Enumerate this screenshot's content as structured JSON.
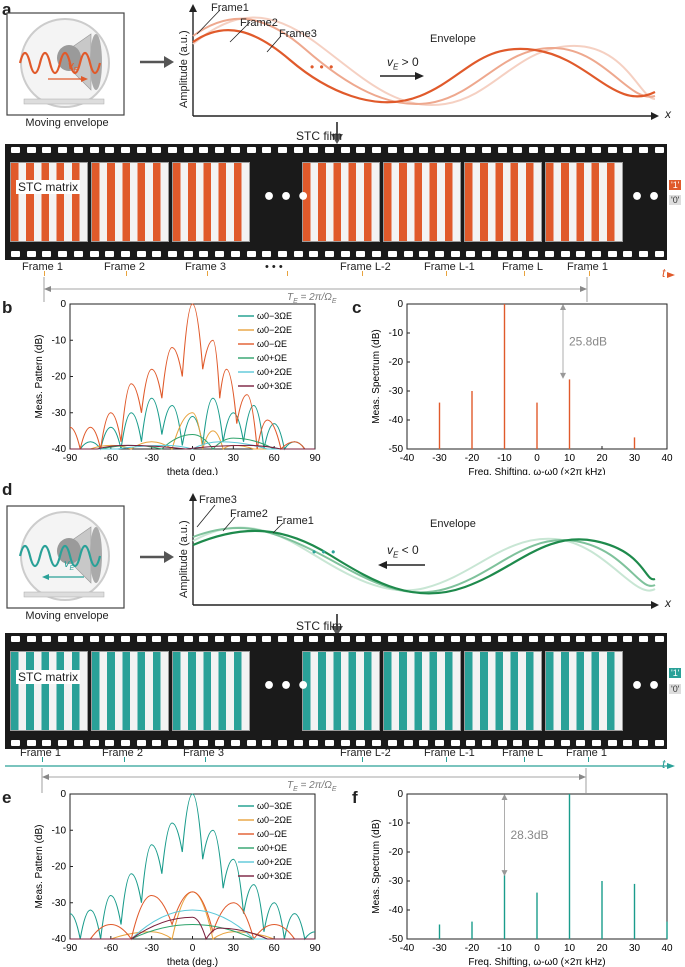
{
  "colors": {
    "orange": "#e05a2b",
    "teal": "#2aa198",
    "green": "#1e8a4c",
    "film": "#1a1a1a"
  },
  "panels": {
    "a": {
      "letter": "a",
      "inset_caption": "Moving envelope",
      "inset_velocity": "v",
      "inset_velocity_sub": "E",
      "wave_labels": [
        "Frame1",
        "Frame2",
        "Frame3"
      ],
      "envelope_label": "Envelope",
      "velocity_text": "v",
      "velocity_sub": "E",
      "velocity_rel": " > 0",
      "ylabel": "Amplitude (a.u.)",
      "xlabel": "x",
      "ellipsis": "• • •",
      "film_title": "STC film",
      "stc_label": "STC matrix",
      "film_dots": "•••",
      "legend_one": "'1'",
      "legend_zero": "'0'",
      "timeline_labels": [
        "Frame 1",
        "Frame 2",
        "Frame 3",
        "• • •",
        "Frame L-2",
        "Frame L-1",
        "Frame L",
        "Frame 1"
      ],
      "time_axis": "t",
      "period_text": "T",
      "period_sub": "E",
      "period_rest": " = 2π/Ω",
      "period_rest_sub": "E"
    },
    "b": {
      "letter": "b",
      "ylabel": "Meas. Pattern (dB)",
      "xlabel": "theta (deg.)",
      "legend": [
        "ω0−3ΩE",
        "ω0−2ΩE",
        "ω0−ΩE",
        "ω0+ΩE",
        "ω0+2ΩE",
        "ω0+3ΩE"
      ]
    },
    "c": {
      "letter": "c",
      "ylabel": "Meas. Spectrum (dB)",
      "xlabel": "Freq. Shifting, ω-ω0 (×2π kHz)",
      "annotation": "25.8dB"
    },
    "d": {
      "letter": "d",
      "inset_caption": "Moving envelope",
      "inset_velocity": "v",
      "inset_velocity_sub": "E",
      "wave_labels": [
        "Frame3",
        "Frame2",
        "Frame1"
      ],
      "envelope_label": "Envelope",
      "velocity_text": "v",
      "velocity_sub": "E",
      "velocity_rel": " < 0",
      "ylabel": "Amplitude (a.u.)",
      "xlabel": "x",
      "ellipsis": "• • •",
      "film_title": "STC film",
      "stc_label": "STC matrix",
      "film_dots": "•••",
      "legend_one": "'1'",
      "legend_zero": "'0'",
      "timeline_labels": [
        "Frame 1",
        "Frame 2",
        "Frame 3",
        "Frame L-2",
        "Frame L-1",
        "Frame L",
        "Frame 1"
      ],
      "time_axis": "t",
      "period_text": "T",
      "period_sub": "E",
      "period_rest": " = 2π/Ω",
      "period_rest_sub": "E"
    },
    "e": {
      "letter": "e",
      "ylabel": "Meas. Pattern (dB)",
      "xlabel": "theta (deg.)",
      "legend": [
        "ω0−3ΩE",
        "ω0−2ΩE",
        "ω0−ΩE",
        "ω0+ΩE",
        "ω0+2ΩE",
        "ω0+3ΩE"
      ]
    },
    "f": {
      "letter": "f",
      "ylabel": "Meas. Spectrum (dB)",
      "xlabel": "Freq. Shifting, ω-ω0 (×2π kHz)",
      "annotation": "28.3dB"
    }
  },
  "chart_data": [
    {
      "id": "b",
      "type": "line",
      "xlabel": "theta (deg.)",
      "ylabel": "Meas. Pattern (dB)",
      "xlim": [
        -90,
        90
      ],
      "ylim": [
        -40,
        0
      ],
      "xticks": [
        -90,
        -60,
        -30,
        0,
        30,
        60,
        90
      ],
      "yticks": [
        0,
        -10,
        -20,
        -30,
        -40
      ],
      "legend_position": "top-right",
      "series": [
        {
          "name": "ω0−3ΩE",
          "color": "#1a9c8c",
          "peaks": [
            [
              -90,
              -40
            ],
            [
              -75,
              -38
            ],
            [
              -60,
              -34
            ],
            [
              -45,
              -30
            ],
            [
              -30,
              -26
            ],
            [
              -15,
              -28
            ],
            [
              0,
              -31
            ],
            [
              15,
              -26
            ],
            [
              30,
              -30
            ],
            [
              45,
              -28
            ],
            [
              60,
              -33
            ],
            [
              75,
              -38
            ],
            [
              90,
              -40
            ]
          ]
        },
        {
          "name": "ω0−2ΩE",
          "color": "#e8a33d",
          "peaks": [
            [
              -90,
              -40
            ],
            [
              -60,
              -39
            ],
            [
              -30,
              -38
            ],
            [
              0,
              -30
            ],
            [
              15,
              -35
            ],
            [
              30,
              -39
            ],
            [
              60,
              -40
            ],
            [
              90,
              -40
            ]
          ]
        },
        {
          "name": "ω0−ΩE",
          "color": "#e05a2b",
          "peaks": [
            [
              -90,
              -34
            ],
            [
              -75,
              -34
            ],
            [
              -60,
              -30
            ],
            [
              -45,
              -22
            ],
            [
              -30,
              -18
            ],
            [
              -15,
              -12
            ],
            [
              0,
              0
            ],
            [
              15,
              -10
            ],
            [
              25,
              -18
            ],
            [
              40,
              -25
            ],
            [
              55,
              -32
            ],
            [
              75,
              -38
            ],
            [
              90,
              -40
            ]
          ]
        },
        {
          "name": "ω0+ΩE",
          "color": "#2ea36b",
          "peaks": [
            [
              -90,
              -40
            ],
            [
              -45,
              -39
            ],
            [
              0,
              -36
            ],
            [
              30,
              -37
            ],
            [
              90,
              -40
            ]
          ]
        },
        {
          "name": "ω0+2ΩE",
          "color": "#5bc8d8",
          "peaks": [
            [
              -90,
              -40
            ],
            [
              -20,
              -39
            ],
            [
              20,
              -38
            ],
            [
              90,
              -40
            ]
          ]
        },
        {
          "name": "ω0+3ΩE",
          "color": "#7a1f3d",
          "peaks": [
            [
              -90,
              -40
            ],
            [
              -50,
              -39
            ],
            [
              40,
              -39
            ],
            [
              90,
              -40
            ]
          ]
        }
      ]
    },
    {
      "id": "c",
      "type": "line",
      "xlabel": "Freq. Shifting, ω-ω0 (×2π kHz)",
      "ylabel": "Meas. Spectrum (dB)",
      "xlim": [
        -40,
        40
      ],
      "ylim": [
        -50,
        0
      ],
      "xticks": [
        -40,
        -30,
        -20,
        -10,
        0,
        10,
        20,
        30,
        40
      ],
      "yticks": [
        0,
        -10,
        -20,
        -30,
        -40,
        -50
      ],
      "series": [
        {
          "name": "",
          "color": "#e05a2b",
          "spikes": [
            [
              -30,
              -34
            ],
            [
              -20,
              -30
            ],
            [
              -10,
              0
            ],
            [
              0,
              -34
            ],
            [
              10,
              -26
            ],
            [
              30,
              -46
            ]
          ]
        }
      ],
      "annotation": {
        "text": "25.8dB",
        "from_y": 0,
        "to_y": -25.8,
        "x": 8
      }
    },
    {
      "id": "e",
      "type": "line",
      "xlabel": "theta (deg.)",
      "ylabel": "Meas. Pattern (dB)",
      "xlim": [
        -90,
        90
      ],
      "ylim": [
        -40,
        0
      ],
      "xticks": [
        -90,
        -60,
        -30,
        0,
        30,
        60,
        90
      ],
      "yticks": [
        0,
        -10,
        -20,
        -30,
        -40
      ],
      "legend_position": "top-right",
      "series": [
        {
          "name": "ω0−3ΩE",
          "color": "#1a9c8c",
          "peaks": [
            [
              -90,
              -33
            ],
            [
              -75,
              -32
            ],
            [
              -60,
              -28
            ],
            [
              -45,
              -22
            ],
            [
              -30,
              -14
            ],
            [
              -15,
              -8
            ],
            [
              0,
              0
            ],
            [
              15,
              -10
            ],
            [
              30,
              -18
            ],
            [
              45,
              -25
            ],
            [
              60,
              -30
            ],
            [
              75,
              -33
            ],
            [
              90,
              -38
            ]
          ]
        },
        {
          "name": "ω0−2ΩE",
          "color": "#e8a33d",
          "peaks": [
            [
              -90,
              -40
            ],
            [
              -30,
              -38
            ],
            [
              0,
              -27
            ],
            [
              30,
              -38
            ],
            [
              90,
              -40
            ]
          ]
        },
        {
          "name": "ω0−ΩE",
          "color": "#e05a2b",
          "peaks": [
            [
              -90,
              -40
            ],
            [
              -60,
              -36
            ],
            [
              -30,
              -28
            ],
            [
              0,
              -27
            ],
            [
              30,
              -30
            ],
            [
              60,
              -36
            ],
            [
              90,
              -40
            ]
          ]
        },
        {
          "name": "ω0+ΩE",
          "color": "#2ea36b",
          "peaks": [
            [
              -90,
              -40
            ],
            [
              0,
              -36
            ],
            [
              90,
              -40
            ]
          ]
        },
        {
          "name": "ω0+2ΩE",
          "color": "#5bc8d8",
          "peaks": [
            [
              -90,
              -40
            ],
            [
              0,
              -32
            ],
            [
              90,
              -40
            ]
          ]
        },
        {
          "name": "ω0+3ΩE",
          "color": "#7a1f3d",
          "peaks": [
            [
              -90,
              -40
            ],
            [
              0,
              -34
            ],
            [
              20,
              -37
            ],
            [
              90,
              -40
            ]
          ]
        }
      ]
    },
    {
      "id": "f",
      "type": "line",
      "xlabel": "Freq. Shifting, ω-ω0 (×2π kHz)",
      "ylabel": "Meas. Spectrum (dB)",
      "xlim": [
        -40,
        40
      ],
      "ylim": [
        -50,
        0
      ],
      "xticks": [
        -40,
        -30,
        -20,
        -10,
        0,
        10,
        20,
        30,
        40
      ],
      "yticks": [
        0,
        -10,
        -20,
        -30,
        -40,
        -50
      ],
      "series": [
        {
          "name": "",
          "color": "#1a9c8c",
          "spikes": [
            [
              -30,
              -45
            ],
            [
              -20,
              -44
            ],
            [
              -10,
              -28
            ],
            [
              0,
              -34
            ],
            [
              10,
              0
            ],
            [
              20,
              -30
            ],
            [
              30,
              -31
            ],
            [
              40,
              -44
            ]
          ]
        }
      ],
      "annotation": {
        "text": "28.3dB",
        "from_y": 0,
        "to_y": -28.3,
        "x": -10
      }
    }
  ]
}
